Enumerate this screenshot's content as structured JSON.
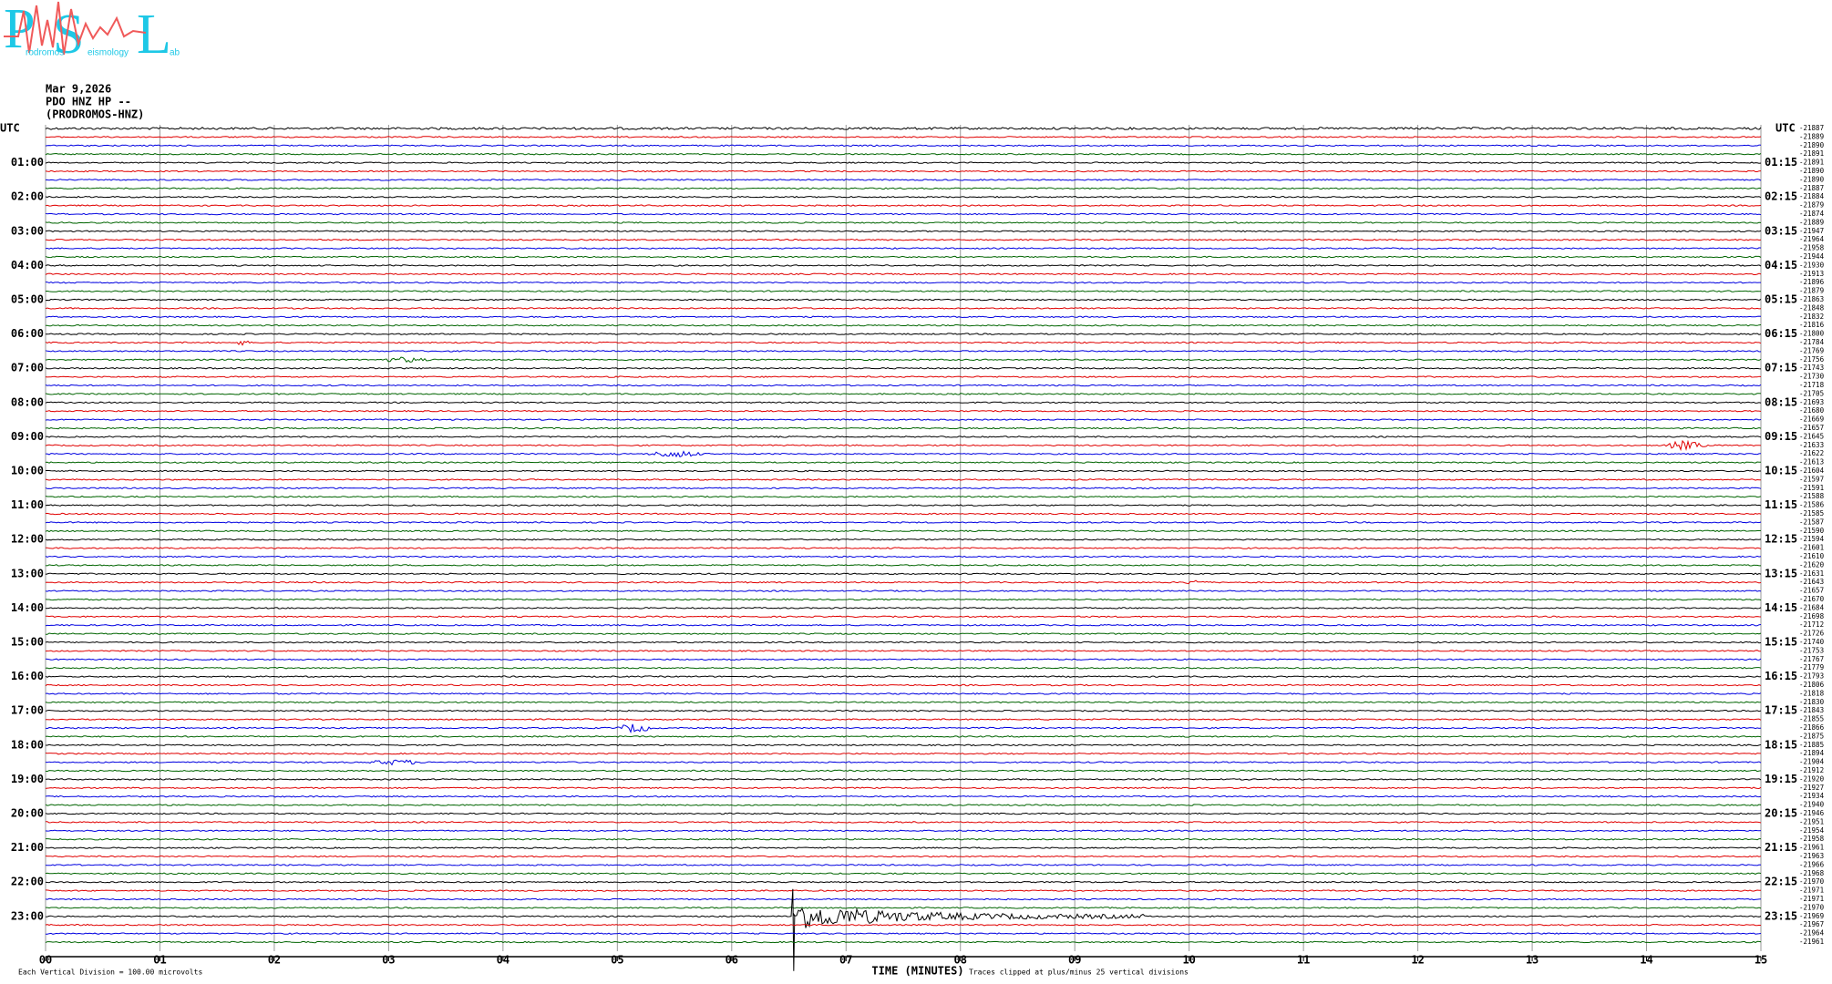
{
  "logo": {
    "letters": [
      "P",
      "S",
      "L"
    ],
    "words": [
      "rodromos",
      "eismology",
      "ab"
    ]
  },
  "header": {
    "date": "Mar 9,2026",
    "station": "PDO HNZ HP --",
    "site": "(PRODROMOS-HNZ)"
  },
  "utc_left": "UTC",
  "utc_right": "UTC",
  "left_labels": [
    "01:00",
    "02:00",
    "03:00",
    "04:00",
    "05:00",
    "06:00",
    "07:00",
    "08:00",
    "09:00",
    "10:00",
    "11:00",
    "12:00",
    "13:00",
    "14:00",
    "15:00",
    "16:00",
    "17:00",
    "18:00",
    "19:00",
    "20:00",
    "21:00",
    "22:00",
    "23:00"
  ],
  "right_labels": [
    "01:15",
    "02:15",
    "03:15",
    "04:15",
    "05:15",
    "06:15",
    "07:15",
    "08:15",
    "09:15",
    "10:15",
    "11:15",
    "12:15",
    "13:15",
    "14:15",
    "15:15",
    "16:15",
    "17:15",
    "18:15",
    "19:15",
    "20:15",
    "21:15",
    "22:15",
    "23:15"
  ],
  "trace_offsets": [
    -21887,
    -21889,
    -21890,
    -21891,
    -21891,
    -21890,
    -21890,
    -21887,
    -21884,
    -21879,
    -21874,
    -21889,
    -21947,
    -21964,
    -21958,
    -21944,
    -21930,
    -21913,
    -21896,
    -21879,
    -21863,
    -21848,
    -21832,
    -21816,
    -21800,
    -21784,
    -21769,
    -21756,
    -21743,
    -21730,
    -21718,
    -21705,
    -21693,
    -21680,
    -21669,
    -21657,
    -21645,
    -21633,
    -21622,
    -21613,
    -21604,
    -21597,
    -21591,
    -21588,
    -21586,
    -21585,
    -21587,
    -21590,
    -21594,
    -21601,
    -21610,
    -21620,
    -21631,
    -21643,
    -21657,
    -21670,
    -21684,
    -21698,
    -21712,
    -21726,
    -21740,
    -21753,
    -21767,
    -21779,
    -21793,
    -21806,
    -21818,
    -21830,
    -21843,
    -21855,
    -21866,
    -21875,
    -21885,
    -21894,
    -21904,
    -21912,
    -21920,
    -21927,
    -21934,
    -21940,
    -21946,
    -21951,
    -21954,
    -21958,
    -21961,
    -21963,
    -21966,
    -21968,
    -21970,
    -21971,
    -21971,
    -21970,
    -21969,
    -21967,
    -21964,
    -21961
  ],
  "x_ticks": [
    "00",
    "01",
    "02",
    "03",
    "04",
    "05",
    "06",
    "07",
    "08",
    "09",
    "10",
    "11",
    "12",
    "13",
    "14",
    "15"
  ],
  "x_label": "TIME (MINUTES)",
  "clip_note": "Traces clipped at plus/minus 25 vertical divisions",
  "scale_note": "Each Vertical Division =  100.00 microvolts"
}
